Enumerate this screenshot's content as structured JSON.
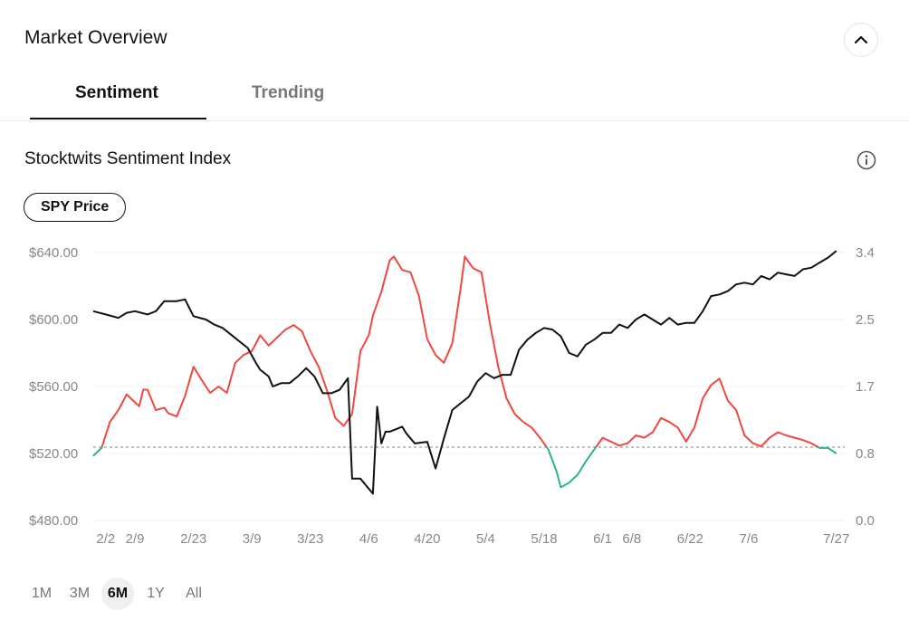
{
  "header": {
    "title": "Market Overview"
  },
  "tabs": [
    {
      "label": "Sentiment",
      "active": true
    },
    {
      "label": "Trending",
      "active": false
    }
  ],
  "section": {
    "title": "Stocktwits Sentiment Index",
    "toggle_label": "SPY Price"
  },
  "range_buttons": [
    {
      "label": "1M",
      "active": false
    },
    {
      "label": "3M",
      "active": false
    },
    {
      "label": "6M",
      "active": true
    },
    {
      "label": "1Y",
      "active": false
    },
    {
      "label": "All",
      "active": false
    }
  ],
  "colors": {
    "price": "#111111",
    "sentiment_bearish": "#f0483e",
    "sentiment_bullish": "#2bb48a",
    "baseline": "#9a9a9a"
  },
  "icons": {
    "collapse": "chevron-up-icon",
    "info": "info-icon"
  },
  "chart_data": {
    "type": "line",
    "x_ticks": [
      "2/2",
      "2/9",
      "2/23",
      "3/9",
      "3/23",
      "4/6",
      "4/20",
      "5/4",
      "5/18",
      "6/1",
      "6/8",
      "6/22",
      "7/6",
      "7/27"
    ],
    "y_left": {
      "ticks": [
        "$480.00",
        "$520.00",
        "$560.00",
        "$600.00",
        "$640.00"
      ],
      "range": [
        480,
        640
      ]
    },
    "y_right": {
      "ticks": [
        "0.0",
        "0.8",
        "1.7",
        "2.5",
        "3.4"
      ],
      "range": [
        0,
        3.4
      ]
    },
    "baseline_sentiment": 0.93,
    "x_range": [
      "1/30",
      "7/29"
    ],
    "series": [
      {
        "axis": "left",
        "points": [
          [
            "1/30",
            605
          ],
          [
            "2/2",
            603
          ],
          [
            "2/5",
            601
          ],
          [
            "2/7",
            604
          ],
          [
            "2/9",
            605
          ],
          [
            "2/12",
            603
          ],
          [
            "2/14",
            605
          ],
          [
            "2/16",
            611
          ],
          [
            "2/19",
            611
          ],
          [
            "2/21",
            612
          ],
          [
            "2/23",
            602
          ],
          [
            "2/26",
            600
          ],
          [
            "2/28",
            597
          ],
          [
            "3/2",
            595
          ],
          [
            "3/4",
            591
          ],
          [
            "3/6",
            587
          ],
          [
            "3/8",
            583
          ],
          [
            "3/10",
            574
          ],
          [
            "3/11",
            570
          ],
          [
            "3/13",
            566
          ],
          [
            "3/14",
            560
          ],
          [
            "3/16",
            562
          ],
          [
            "3/18",
            562
          ],
          [
            "3/20",
            566
          ],
          [
            "3/22",
            571
          ],
          [
            "3/24",
            566
          ],
          [
            "3/26",
            556
          ],
          [
            "3/28",
            556
          ],
          [
            "3/30",
            558
          ],
          [
            "4/1",
            565
          ],
          [
            "4/2",
            505
          ],
          [
            "4/3",
            505
          ],
          [
            "4/4",
            505
          ],
          [
            "4/7",
            496
          ],
          [
            "4/8",
            548
          ],
          [
            "4/9",
            526
          ],
          [
            "4/10",
            533
          ],
          [
            "4/11",
            533
          ],
          [
            "4/14",
            536
          ],
          [
            "4/15",
            532
          ],
          [
            "4/17",
            526
          ],
          [
            "4/20",
            527
          ],
          [
            "4/22",
            511
          ],
          [
            "4/24",
            529
          ],
          [
            "4/26",
            546
          ],
          [
            "4/28",
            550
          ],
          [
            "4/30",
            554
          ],
          [
            "5/2",
            563
          ],
          [
            "5/4",
            568
          ],
          [
            "5/6",
            565
          ],
          [
            "5/8",
            567
          ],
          [
            "5/10",
            567
          ],
          [
            "5/12",
            582
          ],
          [
            "5/14",
            588
          ],
          [
            "5/16",
            592
          ],
          [
            "5/18",
            595
          ],
          [
            "5/20",
            594
          ],
          [
            "5/22",
            590
          ],
          [
            "5/24",
            580
          ],
          [
            "5/26",
            578
          ],
          [
            "5/28",
            585
          ],
          [
            "5/30",
            588
          ],
          [
            "6/1",
            592
          ],
          [
            "6/3",
            592
          ],
          [
            "6/5",
            597
          ],
          [
            "6/7",
            595
          ],
          [
            "6/9",
            600
          ],
          [
            "6/11",
            603
          ],
          [
            "6/13",
            600
          ],
          [
            "6/15",
            597
          ],
          [
            "6/17",
            601
          ],
          [
            "6/19",
            597
          ],
          [
            "6/21",
            598
          ],
          [
            "6/23",
            598
          ],
          [
            "6/25",
            605
          ],
          [
            "6/27",
            614
          ],
          [
            "6/29",
            615
          ],
          [
            "7/1",
            617
          ],
          [
            "7/3",
            621
          ],
          [
            "7/5",
            622
          ],
          [
            "7/7",
            621
          ],
          [
            "7/9",
            626
          ],
          [
            "7/11",
            624
          ],
          [
            "7/13",
            628
          ],
          [
            "7/15",
            627
          ],
          [
            "7/17",
            626
          ],
          [
            "7/19",
            630
          ],
          [
            "7/21",
            631
          ],
          [
            "7/23",
            634
          ],
          [
            "7/25",
            637
          ],
          [
            "7/27",
            641
          ]
        ]
      },
      {
        "axis": "right",
        "points": [
          [
            "1/30",
            0.82
          ],
          [
            "2/1",
            0.92
          ],
          [
            "2/3",
            1.25
          ],
          [
            "2/5",
            1.4
          ],
          [
            "2/7",
            1.6
          ],
          [
            "2/8",
            1.55
          ],
          [
            "2/10",
            1.45
          ],
          [
            "2/11",
            1.66
          ],
          [
            "2/12",
            1.66
          ],
          [
            "2/14",
            1.4
          ],
          [
            "2/16",
            1.43
          ],
          [
            "2/17",
            1.36
          ],
          [
            "2/19",
            1.32
          ],
          [
            "2/21",
            1.58
          ],
          [
            "2/23",
            1.95
          ],
          [
            "2/25",
            1.78
          ],
          [
            "2/27",
            1.62
          ],
          [
            "3/1",
            1.7
          ],
          [
            "3/3",
            1.62
          ],
          [
            "3/5",
            2.0
          ],
          [
            "3/7",
            2.1
          ],
          [
            "3/9",
            2.15
          ],
          [
            "3/11",
            2.35
          ],
          [
            "3/13",
            2.22
          ],
          [
            "3/15",
            2.32
          ],
          [
            "3/17",
            2.42
          ],
          [
            "3/19",
            2.48
          ],
          [
            "3/21",
            2.4
          ],
          [
            "3/23",
            2.15
          ],
          [
            "3/25",
            1.95
          ],
          [
            "3/27",
            1.65
          ],
          [
            "3/29",
            1.3
          ],
          [
            "3/31",
            1.2
          ],
          [
            "4/2",
            1.35
          ],
          [
            "4/4",
            2.15
          ],
          [
            "4/6",
            2.35
          ],
          [
            "4/7",
            2.6
          ],
          [
            "4/9",
            2.9
          ],
          [
            "4/11",
            3.3
          ],
          [
            "4/12",
            3.35
          ],
          [
            "4/14",
            3.18
          ],
          [
            "4/16",
            3.15
          ],
          [
            "4/18",
            2.85
          ],
          [
            "4/20",
            2.3
          ],
          [
            "4/22",
            2.1
          ],
          [
            "4/24",
            2.0
          ],
          [
            "4/26",
            2.25
          ],
          [
            "4/28",
            2.95
          ],
          [
            "4/29",
            3.35
          ],
          [
            "5/1",
            3.2
          ],
          [
            "5/3",
            3.15
          ],
          [
            "5/5",
            2.5
          ],
          [
            "5/7",
            1.95
          ],
          [
            "5/9",
            1.55
          ],
          [
            "5/11",
            1.35
          ],
          [
            "5/13",
            1.25
          ],
          [
            "5/15",
            1.18
          ],
          [
            "5/17",
            1.05
          ],
          [
            "5/19",
            0.9
          ],
          [
            "5/21",
            0.62
          ],
          [
            "5/22",
            0.42
          ],
          [
            "5/24",
            0.48
          ],
          [
            "5/26",
            0.58
          ],
          [
            "5/28",
            0.75
          ],
          [
            "5/30",
            0.9
          ],
          [
            "6/1",
            1.05
          ],
          [
            "6/3",
            1.0
          ],
          [
            "6/5",
            0.95
          ],
          [
            "6/7",
            0.98
          ],
          [
            "6/9",
            1.08
          ],
          [
            "6/11",
            1.05
          ],
          [
            "6/13",
            1.12
          ],
          [
            "6/15",
            1.3
          ],
          [
            "6/17",
            1.25
          ],
          [
            "6/19",
            1.18
          ],
          [
            "6/21",
            1.0
          ],
          [
            "6/23",
            1.18
          ],
          [
            "6/25",
            1.55
          ],
          [
            "6/27",
            1.72
          ],
          [
            "6/29",
            1.8
          ],
          [
            "7/1",
            1.52
          ],
          [
            "7/3",
            1.4
          ],
          [
            "7/5",
            1.08
          ],
          [
            "7/7",
            0.98
          ],
          [
            "7/9",
            0.94
          ],
          [
            "7/11",
            1.05
          ],
          [
            "7/13",
            1.12
          ],
          [
            "7/15",
            1.08
          ],
          [
            "7/17",
            1.05
          ],
          [
            "7/19",
            1.02
          ],
          [
            "7/21",
            0.98
          ],
          [
            "7/23",
            0.92
          ],
          [
            "7/25",
            0.92
          ],
          [
            "7/27",
            0.85
          ]
        ]
      }
    ]
  }
}
